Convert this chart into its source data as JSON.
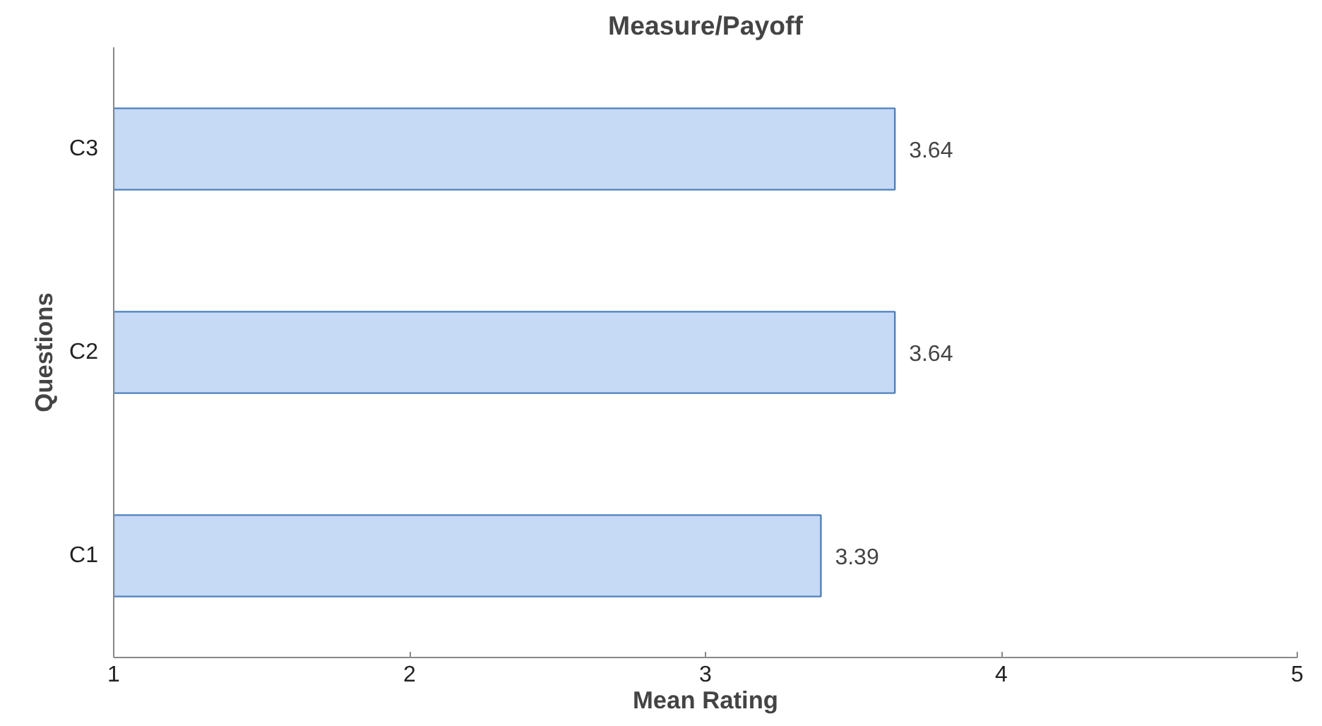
{
  "chart_data": {
    "type": "bar",
    "orientation": "horizontal",
    "title": "Measure/Payoff",
    "xlabel": "Mean Rating",
    "ylabel": "Questions",
    "categories": [
      "C3",
      "C2",
      "C1"
    ],
    "values": [
      3.64,
      3.64,
      3.39
    ],
    "color": "#c6d9f5",
    "xlim": [
      1,
      5
    ],
    "xticks": [
      1,
      2,
      3,
      4,
      5
    ],
    "data_labels": true,
    "grid": false
  }
}
